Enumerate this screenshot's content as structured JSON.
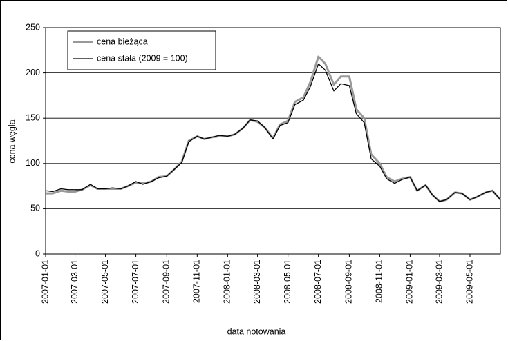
{
  "chart_data": {
    "type": "line",
    "y_label": "cena węgla",
    "x_label": "data notowania",
    "x": [
      "2007-01-01",
      "2007-01-15",
      "2007-02-01",
      "2007-02-15",
      "2007-03-01",
      "2007-03-15",
      "2007-04-01",
      "2007-04-15",
      "2007-05-01",
      "2007-05-15",
      "2007-06-01",
      "2007-06-15",
      "2007-07-01",
      "2007-07-15",
      "2007-08-01",
      "2007-08-15",
      "2007-09-01",
      "2007-09-15",
      "2007-10-01",
      "2007-10-15",
      "2007-11-01",
      "2007-11-15",
      "2007-12-01",
      "2007-12-15",
      "2008-01-01",
      "2008-01-15",
      "2008-02-01",
      "2008-02-15",
      "2008-03-01",
      "2008-03-15",
      "2008-04-01",
      "2008-04-15",
      "2008-05-01",
      "2008-05-15",
      "2008-06-01",
      "2008-06-15",
      "2008-07-01",
      "2008-07-15",
      "2008-08-01",
      "2008-08-15",
      "2008-09-01",
      "2008-09-15",
      "2008-10-01",
      "2008-10-15",
      "2008-11-01",
      "2008-11-15",
      "2008-12-01",
      "2008-12-15",
      "2009-01-01",
      "2009-01-15",
      "2009-02-01",
      "2009-02-15",
      "2009-03-01",
      "2009-03-15",
      "2009-04-01",
      "2009-04-15",
      "2009-05-01",
      "2009-05-15",
      "2009-06-01",
      "2009-06-15",
      "2009-07-01"
    ],
    "series": [
      {
        "name": "cena bieżąca",
        "color": "#999999",
        "width": 3,
        "values": [
          67,
          67,
          70,
          69,
          69,
          71,
          76,
          72,
          72,
          72,
          72,
          75,
          79,
          78,
          80,
          85,
          86,
          93,
          102,
          125,
          130,
          127,
          129,
          130,
          130,
          132,
          139,
          148,
          146,
          140,
          128,
          143,
          147,
          168,
          173,
          190,
          218,
          210,
          187,
          196,
          196,
          160,
          150,
          110,
          100,
          85,
          80,
          83,
          85,
          70,
          76,
          65,
          58,
          60,
          68,
          67,
          60,
          63,
          68,
          70,
          60
        ]
      },
      {
        "name": "cena stała (2009 = 100)",
        "color": "#000000",
        "width": 1.3,
        "values": [
          70,
          69,
          72,
          71,
          71,
          71,
          77,
          72,
          72,
          73,
          72,
          75,
          80,
          77,
          80,
          84,
          86,
          93,
          101,
          124,
          130,
          127,
          129,
          131,
          130,
          132,
          139,
          148,
          147,
          140,
          127,
          142,
          145,
          165,
          170,
          185,
          210,
          203,
          180,
          188,
          186,
          155,
          145,
          105,
          97,
          83,
          78,
          82,
          85,
          70,
          76,
          65,
          58,
          60,
          68,
          67,
          60,
          63,
          68,
          70,
          60
        ]
      }
    ],
    "xlim": [
      "2007-01-01",
      "2009-07-01"
    ],
    "xticks": [
      "2007-01-01",
      "2007-03-01",
      "2007-05-01",
      "2007-07-01",
      "2007-09-01",
      "2007-11-01",
      "2008-01-01",
      "2008-03-01",
      "2008-05-01",
      "2008-07-01",
      "2008-09-01",
      "2008-11-01",
      "2009-01-01",
      "2009-03-01",
      "2009-05-01"
    ],
    "ylim": [
      0,
      250
    ],
    "yticks": [
      0,
      50,
      100,
      150,
      200,
      250
    ],
    "grid": true,
    "legend": "upper left"
  }
}
